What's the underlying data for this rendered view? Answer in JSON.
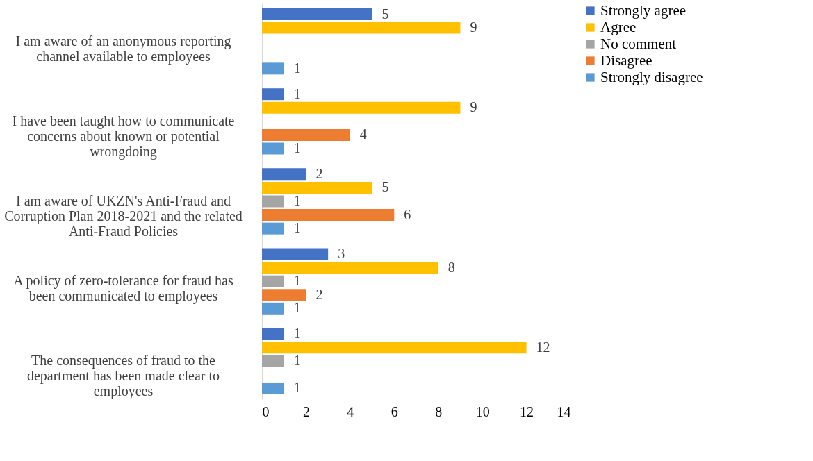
{
  "chart_data": {
    "type": "bar",
    "orientation": "horizontal",
    "categories": [
      "I am aware of an anonymous reporting channel available to employees",
      "I have been taught how to communicate concerns about known or potential wrongdoing",
      "I am aware of UKZN's Anti-Fraud and Corruption Plan 2018-2021 and the related Anti-Fraud Policies",
      "A policy of zero-tolerance for fraud has been communicated to employees",
      "The consequences of fraud to the department has been made clear to employees"
    ],
    "series": [
      {
        "name": "Strongly agree",
        "color": "#4472c4",
        "values": [
          5,
          1,
          2,
          3,
          1
        ]
      },
      {
        "name": "Agree",
        "color": "#ffc000",
        "values": [
          9,
          9,
          5,
          8,
          12
        ]
      },
      {
        "name": "No comment",
        "color": "#a5a5a5",
        "values": [
          null,
          null,
          1,
          1,
          1
        ]
      },
      {
        "name": "Disagree",
        "color": "#ed7d31",
        "values": [
          null,
          4,
          6,
          2,
          null
        ]
      },
      {
        "name": "Strongly disagree",
        "color": "#5b9bd5",
        "values": [
          1,
          1,
          1,
          1,
          1
        ]
      }
    ],
    "xlim": [
      0,
      14
    ],
    "xticks": [
      0,
      2,
      4,
      6,
      8,
      10,
      12,
      14
    ],
    "grid": false,
    "legend": "right",
    "data_labels": true
  }
}
